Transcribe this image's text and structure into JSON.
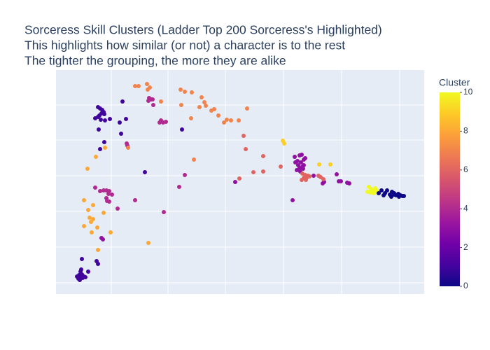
{
  "chart_data": {
    "type": "scatter",
    "title": [
      "Sorceress Skill Clusters (Ladder Top 200 Sorceress's Highlighted)",
      "This highlights how similar (or not) a character is to the rest",
      "The tighter the grouping, the more they are alike"
    ],
    "xlim": [
      80,
      606
    ],
    "ylim": [
      80,
      400
    ],
    "xticks": [
      159,
      240,
      322,
      405,
      488,
      571
    ],
    "yticks": [
      96,
      147,
      198,
      249,
      300,
      350
    ],
    "grid": true,
    "tick_labels": false,
    "x": [
      110,
      112,
      114,
      116,
      118,
      120,
      122,
      113,
      117,
      115,
      116,
      126,
      117,
      138,
      140,
      140,
      143,
      146,
      148,
      145,
      149,
      142,
      140,
      136,
      144,
      150,
      157,
      141,
      149,
      143,
      175,
      180,
      171,
      173,
      260,
      207,
      125,
      137,
      150,
      120,
      133,
      126,
      148,
      128,
      133,
      130,
      120,
      139,
      158,
      131,
      140,
      212,
      136,
      143,
      148,
      152,
      156,
      155,
      160,
      152,
      153,
      156,
      168,
      193,
      234,
      256,
      264,
      145,
      147,
      181,
      182,
      213,
      216,
      212,
      219,
      218,
      230,
      233,
      237,
      228,
      193,
      198,
      210,
      214,
      211,
      230,
      258,
      264,
      274,
      259,
      273,
      288,
      292,
      294,
      285,
      302,
      306,
      312,
      320,
      324,
      330,
      341,
      353,
      183,
      277,
      348,
      351,
      376,
      362,
      376,
      401,
      342,
      404,
      406,
      456,
      472,
      421,
      428,
      431,
      425,
      430,
      434,
      436,
      426,
      428,
      432,
      424,
      429,
      433,
      434,
      422,
      418,
      336,
      461,
      463,
      496,
      499,
      481,
      484,
      487,
      448,
      432,
      436,
      440,
      434,
      438,
      442,
      431,
      437,
      458,
      462,
      455,
      527,
      530,
      533,
      536,
      538,
      529,
      534,
      539,
      525,
      541,
      550,
      553,
      557,
      560,
      563,
      566,
      569,
      572,
      575,
      577,
      559,
      548,
      545,
      563,
      570
    ],
    "y": [
      105,
      102,
      100,
      104,
      103,
      105,
      104,
      107,
      108,
      112,
      115,
      112,
      130,
      127,
      123,
      347,
      345,
      343,
      340,
      338,
      337,
      335,
      333,
      331,
      329,
      328,
      330,
      315,
      297,
      287,
      355,
      330,
      325,
      309,
      315,
      254,
      259,
      276,
      289,
      214,
      207,
      200,
      196,
      189,
      187,
      183,
      177,
      175,
      168,
      168,
      143,
      153,
      232,
      227,
      228,
      228,
      227,
      223,
      222,
      217,
      213,
      212,
      202,
      214,
      197,
      233,
      250,
      160,
      158,
      295,
      292,
      360,
      358,
      356,
      350,
      358,
      328,
      325,
      326,
      325,
      377,
      377,
      380,
      375,
      372,
      355,
      372,
      369,
      368,
      350,
      331,
      361,
      354,
      349,
      347,
      342,
      344,
      335,
      325,
      329,
      328,
      328,
      345,
      289,
      272,
      306,
      287,
      277,
      254,
      255,
      262,
      245,
      299,
      295,
      265,
      265,
      276,
      278,
      279,
      270,
      268,
      272,
      274,
      264,
      260,
      262,
      257,
      255,
      259,
      264,
      268,
      214,
      240,
      238,
      240,
      239,
      238,
      251,
      241,
      241,
      249,
      252,
      250,
      249,
      246,
      246,
      248,
      243,
      243,
      247,
      244,
      249,
      233,
      230,
      228,
      231,
      228,
      225,
      224,
      226,
      226,
      224,
      224,
      228,
      222,
      226,
      222,
      221,
      223,
      221,
      220,
      220,
      219,
      221,
      228,
      224,
      219
    ],
    "cluster": [
      1,
      1,
      1,
      1,
      1,
      1,
      1,
      1,
      1,
      1,
      1,
      1,
      1,
      1,
      1,
      1,
      1,
      1,
      1,
      1,
      1,
      1,
      1,
      1,
      1,
      1,
      1,
      1,
      1,
      1,
      1,
      1,
      1,
      1,
      1,
      1,
      8,
      8,
      8,
      8,
      8,
      8,
      8,
      8,
      8,
      8,
      8,
      8,
      8,
      8,
      8,
      8,
      4,
      4,
      4,
      4,
      4,
      4,
      4,
      4,
      4,
      4,
      4,
      4,
      4,
      4,
      4,
      3,
      3,
      4,
      4,
      4,
      4,
      4,
      4,
      4,
      4,
      4,
      4,
      4,
      7,
      7,
      7,
      7,
      7,
      7,
      7,
      7,
      7,
      7,
      7,
      7,
      7,
      7,
      7,
      7,
      7,
      7,
      7,
      7,
      7,
      7,
      7,
      7,
      7,
      6,
      6,
      6,
      6,
      6,
      6,
      6,
      9,
      9,
      9,
      9,
      3,
      3,
      3,
      3,
      3,
      3,
      3,
      3,
      3,
      3,
      3,
      3,
      3,
      3,
      3,
      3,
      3,
      3,
      3,
      3,
      3,
      3,
      3,
      3,
      3,
      6,
      6,
      6,
      6,
      6,
      6,
      6,
      6,
      6,
      6,
      6,
      10,
      10,
      10,
      10,
      10,
      10,
      10,
      10,
      10,
      0,
      0,
      0,
      0,
      0,
      0,
      0,
      0,
      0,
      0,
      0,
      0,
      0,
      0,
      0,
      0
    ],
    "colorscale": [
      "#0d0887",
      "#46039f",
      "#7201a8",
      "#9c179e",
      "#bd3786",
      "#d8576b",
      "#ed7953",
      "#fb9f3a",
      "#fdca26",
      "#f0f921"
    ],
    "colorbar": {
      "title": "Cluster",
      "lim": [
        0,
        10
      ],
      "ticks": [
        0,
        2,
        4,
        6,
        8,
        10
      ]
    },
    "plot_bg": "#e5ecf6"
  }
}
